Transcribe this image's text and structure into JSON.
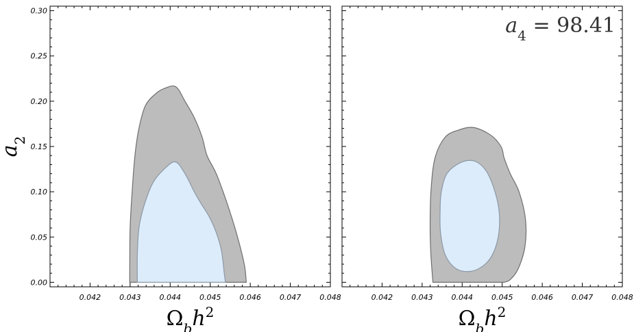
{
  "chart_data": [
    {
      "type": "contour",
      "panel": "left",
      "annotation": "",
      "xlabel": "Ω_b h²",
      "ylabel": "a₂",
      "xlim": [
        0.041,
        0.048
      ],
      "ylim": [
        -0.005,
        0.305
      ],
      "xticks": [
        "0.042",
        "0.043",
        "0.044",
        "0.045",
        "0.046",
        "0.047",
        "0.048"
      ],
      "yticks": [
        "0.00",
        "0.05",
        "0.10",
        "0.15",
        "0.20",
        "0.25",
        "0.30"
      ],
      "grid": false,
      "regions": [
        {
          "level": "outer",
          "fill": "#bcbcbc",
          "points": [
            [
              0.04299,
              0.0
            ],
            [
              0.04299,
              0.015
            ],
            [
              0.043,
              0.06
            ],
            [
              0.04305,
              0.1
            ],
            [
              0.04312,
              0.14
            ],
            [
              0.04322,
              0.17
            ],
            [
              0.04338,
              0.195
            ],
            [
              0.04363,
              0.208
            ],
            [
              0.04385,
              0.214
            ],
            [
              0.04414,
              0.216
            ],
            [
              0.04437,
              0.2
            ],
            [
              0.0446,
              0.182
            ],
            [
              0.0448,
              0.16
            ],
            [
              0.04492,
              0.14
            ],
            [
              0.04515,
              0.12
            ],
            [
              0.0454,
              0.09
            ],
            [
              0.04565,
              0.055
            ],
            [
              0.04585,
              0.02
            ],
            [
              0.0459,
              0.0
            ]
          ]
        },
        {
          "level": "inner",
          "fill": "#dcecfb",
          "points": [
            [
              0.04318,
              0.0
            ],
            [
              0.04318,
              0.03
            ],
            [
              0.04322,
              0.06
            ],
            [
              0.04335,
              0.085
            ],
            [
              0.04357,
              0.11
            ],
            [
              0.04385,
              0.125
            ],
            [
              0.04413,
              0.133
            ],
            [
              0.04437,
              0.12
            ],
            [
              0.0446,
              0.1
            ],
            [
              0.04477,
              0.087
            ],
            [
              0.04498,
              0.072
            ],
            [
              0.04515,
              0.055
            ],
            [
              0.04528,
              0.035
            ],
            [
              0.04535,
              0.01
            ],
            [
              0.04538,
              0.0
            ]
          ]
        }
      ]
    },
    {
      "type": "contour",
      "panel": "right",
      "annotation": "a₄ = 98.41",
      "xlabel": "Ω_b h²",
      "ylabel": "",
      "xlim": [
        0.041,
        0.048
      ],
      "ylim": [
        -0.005,
        0.305
      ],
      "xticks": [
        "0.042",
        "0.043",
        "0.044",
        "0.045",
        "0.046",
        "0.047",
        "0.048"
      ],
      "yticks": [],
      "grid": false,
      "regions": [
        {
          "level": "outer",
          "fill": "#bcbcbc",
          "points": [
            [
              0.04327,
              0.0
            ],
            [
              0.04322,
              0.03
            ],
            [
              0.0432,
              0.06
            ],
            [
              0.04322,
              0.1
            ],
            [
              0.04332,
              0.137
            ],
            [
              0.04357,
              0.16
            ],
            [
              0.0439,
              0.168
            ],
            [
              0.04428,
              0.171
            ],
            [
              0.0447,
              0.163
            ],
            [
              0.04497,
              0.15
            ],
            [
              0.04505,
              0.137
            ],
            [
              0.0452,
              0.12
            ],
            [
              0.04542,
              0.1
            ],
            [
              0.04558,
              0.07
            ],
            [
              0.04557,
              0.04
            ],
            [
              0.0454,
              0.015
            ],
            [
              0.0452,
              0.003
            ],
            [
              0.04505,
              0.0
            ]
          ]
        },
        {
          "level": "inner",
          "fill": "#dcecfb",
          "points": [
            [
              0.04345,
              0.08
            ],
            [
              0.04348,
              0.1
            ],
            [
              0.04362,
              0.12
            ],
            [
              0.04395,
              0.132
            ],
            [
              0.0443,
              0.134
            ],
            [
              0.0446,
              0.123
            ],
            [
              0.04482,
              0.1
            ],
            [
              0.04493,
              0.075
            ],
            [
              0.0449,
              0.05
            ],
            [
              0.04475,
              0.03
            ],
            [
              0.04452,
              0.018
            ],
            [
              0.0442,
              0.012
            ],
            [
              0.04385,
              0.015
            ],
            [
              0.04358,
              0.03
            ],
            [
              0.04346,
              0.055
            ]
          ]
        }
      ]
    }
  ]
}
